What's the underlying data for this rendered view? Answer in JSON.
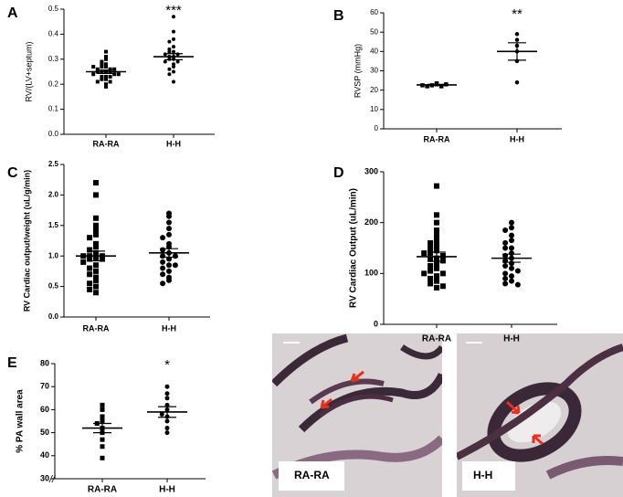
{
  "chart_data": [
    {
      "type": "dot",
      "panel": "A",
      "y_label": "RV/(LV+septum)",
      "categories": [
        "RA-RA",
        "H-H"
      ],
      "markers": [
        "square",
        "circle"
      ],
      "color": "#000000",
      "values": [
        [
          0.33,
          0.31,
          0.3,
          0.29,
          0.28,
          0.28,
          0.27,
          0.27,
          0.26,
          0.26,
          0.26,
          0.25,
          0.25,
          0.25,
          0.25,
          0.24,
          0.24,
          0.24,
          0.23,
          0.23,
          0.23,
          0.22,
          0.22,
          0.21,
          0.21,
          0.2,
          0.19,
          0.27
        ],
        [
          0.47,
          0.41,
          0.38,
          0.37,
          0.35,
          0.34,
          0.33,
          0.33,
          0.32,
          0.32,
          0.31,
          0.31,
          0.3,
          0.3,
          0.29,
          0.29,
          0.28,
          0.27,
          0.26,
          0.25,
          0.24,
          0.21
        ]
      ],
      "means": [
        0.25,
        0.31
      ],
      "sems": [
        0.007,
        0.012
      ],
      "significance": [
        null,
        "***"
      ],
      "ylim": [
        0,
        0.5
      ],
      "yticks": [
        {
          "value": 0,
          "label": "0.0"
        },
        0.1,
        0.2,
        0.3,
        0.4,
        0.5
      ]
    },
    {
      "type": "dot",
      "panel": "B",
      "y_label": "RVSP (mmHg)",
      "categories": [
        "RA-RA",
        "H-H"
      ],
      "markers": [
        "square",
        "circle"
      ],
      "color": "#000000",
      "values": [
        [
          23,
          22.5,
          22,
          23.5,
          22,
          23,
          22.5
        ],
        [
          49,
          46,
          43,
          40,
          35,
          24
        ]
      ],
      "means": [
        22.7,
        40
      ],
      "sems": [
        0.3,
        4.5
      ],
      "significance": [
        null,
        "**"
      ],
      "ylim": [
        0,
        60
      ],
      "yticks": [
        0,
        10,
        20,
        30,
        40,
        50,
        60
      ]
    },
    {
      "type": "dot",
      "panel": "C",
      "y_label": "RV Cardiac output/weight (uL/g/min)",
      "categories": [
        "RA-RA",
        "H-H"
      ],
      "markers": [
        "square",
        "circle"
      ],
      "color": "#000000",
      "values": [
        [
          2.2,
          2.0,
          1.62,
          1.5,
          1.42,
          1.35,
          1.3,
          1.2,
          1.15,
          1.1,
          1.05,
          1.0,
          1.0,
          0.97,
          0.95,
          0.95,
          0.9,
          0.85,
          0.8,
          0.75,
          0.7,
          0.65,
          0.6,
          0.55,
          0.5,
          0.45,
          0.4,
          1.0
        ],
        [
          1.7,
          1.65,
          1.55,
          1.45,
          1.35,
          1.3,
          1.2,
          1.15,
          1.1,
          1.05,
          1.0,
          0.95,
          0.9,
          0.85,
          0.8,
          0.75,
          0.7,
          0.65,
          0.6,
          0.55,
          1.0,
          0.85
        ]
      ],
      "means": [
        1.0,
        1.05
      ],
      "sems": [
        0.08,
        0.07
      ],
      "significance": [
        null,
        null
      ],
      "ylim": [
        0,
        2.5
      ],
      "yticks": [
        {
          "value": 0,
          "label": "0.0"
        },
        0.5,
        {
          "value": 1,
          "label": "1.0"
        },
        1.5,
        {
          "value": 2,
          "label": "2.0"
        },
        2.5
      ]
    },
    {
      "type": "dot",
      "panel": "D",
      "y_label": "RV Cardiac Output (uL/min)",
      "categories": [
        "RA-RA",
        "H-H"
      ],
      "markers": [
        "square",
        "circle"
      ],
      "color": "#000000",
      "values": [
        [
          272,
          215,
          200,
          185,
          175,
          165,
          155,
          150,
          145,
          140,
          135,
          130,
          128,
          125,
          120,
          115,
          110,
          105,
          100,
          95,
          90,
          85,
          80,
          75,
          72,
          140,
          160,
          100
        ],
        [
          200,
          190,
          185,
          175,
          165,
          160,
          150,
          140,
          135,
          130,
          125,
          120,
          115,
          110,
          100,
          95,
          90,
          85,
          80,
          78,
          150,
          105
        ]
      ],
      "means": [
        133,
        130
      ],
      "sems": [
        9,
        8
      ],
      "significance": [
        null,
        null
      ],
      "ylim": [
        0,
        300
      ],
      "yticks": [
        0,
        100,
        200,
        300
      ]
    },
    {
      "type": "dot",
      "panel": "E",
      "y_label": "% PA wall area",
      "categories": [
        "RA-RA",
        "H-H"
      ],
      "markers": [
        "square",
        "circle"
      ],
      "color": "#000000",
      "values": [
        [
          62,
          60,
          57,
          55,
          54,
          52,
          50,
          47,
          44,
          39
        ],
        [
          70,
          67,
          65,
          62,
          60,
          58,
          57,
          55,
          52,
          50
        ]
      ],
      "means": [
        52,
        59
      ],
      "sems": [
        2,
        2.3
      ],
      "significance": [
        null,
        "*"
      ],
      "axis_break": "//",
      "ylim": [
        30,
        80
      ],
      "yticks": [
        30,
        40,
        50,
        60,
        70,
        80
      ]
    }
  ],
  "images": [
    {
      "label": "RA-RA"
    },
    {
      "label": "H-H"
    }
  ]
}
